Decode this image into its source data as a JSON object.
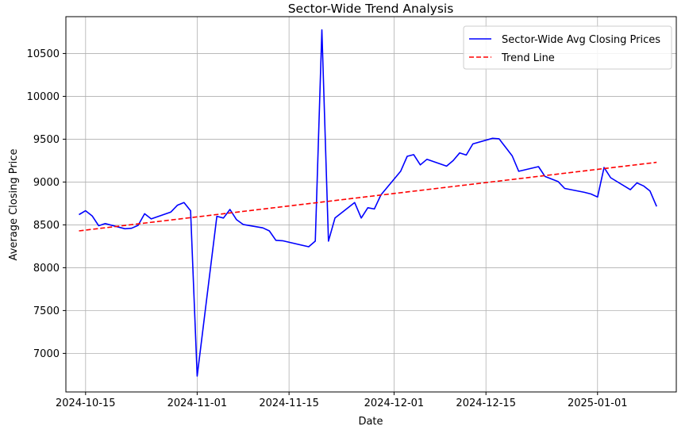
{
  "chart_data": {
    "type": "line",
    "title": "Sector-Wide Trend Analysis",
    "xlabel": "Date",
    "ylabel": "Average Closing Price",
    "x_ticks": [
      "2024-10-15",
      "2024-11-01",
      "2024-11-15",
      "2024-12-01",
      "2024-12-15",
      "2025-01-01"
    ],
    "y_ticks": [
      7000,
      7500,
      8000,
      8500,
      9000,
      9500,
      10000,
      10500
    ],
    "xlim": [
      "2024-10-12",
      "2025-01-13"
    ],
    "ylim": [
      6550,
      10930
    ],
    "grid": true,
    "legend_position": "top-right",
    "series": [
      {
        "name": "Sector-Wide Avg Closing Prices",
        "color": "#0000ff",
        "style": "solid",
        "points": [
          [
            "2024-10-14",
            8620
          ],
          [
            "2024-10-15",
            8665
          ],
          [
            "2024-10-16",
            8605
          ],
          [
            "2024-10-17",
            8490
          ],
          [
            "2024-10-18",
            8515
          ],
          [
            "2024-10-21",
            8455
          ],
          [
            "2024-10-22",
            8460
          ],
          [
            "2024-10-23",
            8495
          ],
          [
            "2024-10-24",
            8630
          ],
          [
            "2024-10-25",
            8570
          ],
          [
            "2024-10-28",
            8650
          ],
          [
            "2024-10-29",
            8730
          ],
          [
            "2024-10-30",
            8760
          ],
          [
            "2024-10-31",
            8665
          ],
          [
            "2024-11-01",
            6735
          ],
          [
            "2024-11-04",
            8600
          ],
          [
            "2024-11-05",
            8580
          ],
          [
            "2024-11-06",
            8680
          ],
          [
            "2024-11-07",
            8560
          ],
          [
            "2024-11-08",
            8505
          ],
          [
            "2024-11-11",
            8465
          ],
          [
            "2024-11-12",
            8430
          ],
          [
            "2024-11-13",
            8320
          ],
          [
            "2024-11-14",
            8315
          ],
          [
            "2024-11-18",
            8245
          ],
          [
            "2024-11-19",
            8310
          ],
          [
            "2024-11-20",
            10775
          ],
          [
            "2024-11-21",
            8310
          ],
          [
            "2024-11-22",
            8580
          ],
          [
            "2024-11-25",
            8760
          ],
          [
            "2024-11-26",
            8580
          ],
          [
            "2024-11-27",
            8700
          ],
          [
            "2024-11-28",
            8685
          ],
          [
            "2024-11-29",
            8850
          ],
          [
            "2024-12-02",
            9125
          ],
          [
            "2024-12-03",
            9300
          ],
          [
            "2024-12-04",
            9320
          ],
          [
            "2024-12-05",
            9200
          ],
          [
            "2024-12-06",
            9265
          ],
          [
            "2024-12-09",
            9185
          ],
          [
            "2024-12-10",
            9250
          ],
          [
            "2024-12-11",
            9340
          ],
          [
            "2024-12-12",
            9315
          ],
          [
            "2024-12-13",
            9445
          ],
          [
            "2024-12-16",
            9510
          ],
          [
            "2024-12-17",
            9505
          ],
          [
            "2024-12-19",
            9305
          ],
          [
            "2024-12-20",
            9125
          ],
          [
            "2024-12-23",
            9180
          ],
          [
            "2024-12-24",
            9065
          ],
          [
            "2024-12-26",
            9005
          ],
          [
            "2024-12-27",
            8925
          ],
          [
            "2024-12-30",
            8880
          ],
          [
            "2024-12-31",
            8860
          ],
          [
            "2025-01-01",
            8825
          ],
          [
            "2025-01-02",
            9170
          ],
          [
            "2025-01-03",
            9050
          ],
          [
            "2025-01-06",
            8910
          ],
          [
            "2025-01-07",
            8990
          ],
          [
            "2025-01-08",
            8955
          ],
          [
            "2025-01-09",
            8895
          ],
          [
            "2025-01-10",
            8715
          ]
        ]
      },
      {
        "name": "Trend Line",
        "color": "#ff0000",
        "style": "dashed",
        "points": [
          [
            "2024-10-14",
            8430
          ],
          [
            "2025-01-10",
            9230
          ]
        ]
      }
    ]
  }
}
